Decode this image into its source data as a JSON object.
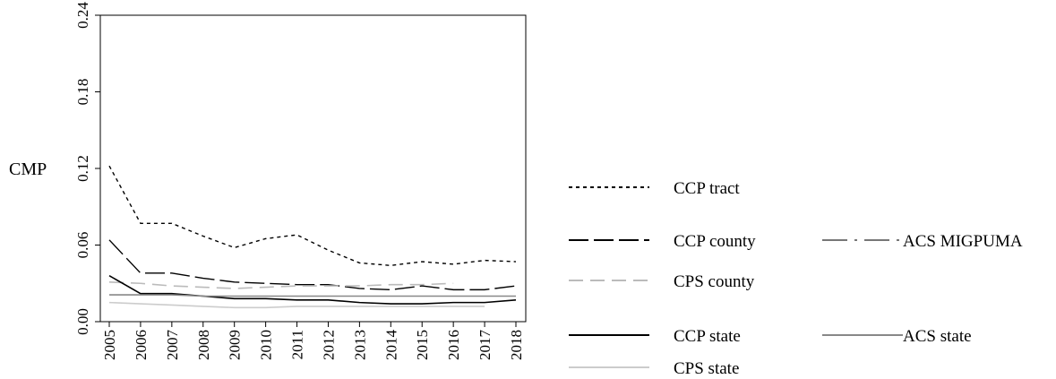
{
  "chart_data": {
    "type": "line",
    "title": "",
    "xlabel": "",
    "ylabel": "CMP",
    "ylim": [
      0,
      0.24
    ],
    "y_ticks": [
      "0.00",
      "0.06",
      "0.12",
      "0.18",
      "0.24"
    ],
    "x": [
      "2005",
      "2006",
      "2007",
      "2008",
      "2009",
      "2010",
      "2011",
      "2012",
      "2013",
      "2014",
      "2015",
      "2016",
      "2017",
      "2018"
    ],
    "grid": false,
    "legend_position": "right",
    "series": [
      {
        "name": "CCP tract",
        "style": "dotted",
        "color": "#000000",
        "values": [
          0.122,
          0.077,
          0.077,
          0.067,
          0.058,
          0.065,
          0.068,
          0.056,
          0.046,
          0.044,
          0.047,
          0.045,
          0.048,
          0.047
        ]
      },
      {
        "name": "CCP county",
        "style": "longdash",
        "color": "#000000",
        "values": [
          0.064,
          0.038,
          0.038,
          0.034,
          0.031,
          0.03,
          0.029,
          0.029,
          0.026,
          0.025,
          0.028,
          0.025,
          0.025,
          0.028
        ]
      },
      {
        "name": "ACS MIGPUMA",
        "style": "dashdot",
        "color": "#777777",
        "values": [
          null,
          null,
          null,
          null,
          null,
          null,
          null,
          null,
          null,
          null,
          null,
          null,
          null,
          null
        ]
      },
      {
        "name": "CPS county",
        "style": "dashed",
        "color": "#bbbbbb",
        "values": [
          0.031,
          0.03,
          0.028,
          0.027,
          0.026,
          0.027,
          0.028,
          0.028,
          0.028,
          0.029,
          0.029,
          0.03,
          null,
          null
        ]
      },
      {
        "name": "CCP state",
        "style": "solid",
        "color": "#000000",
        "values": [
          0.036,
          0.022,
          0.022,
          0.02,
          0.018,
          0.018,
          0.017,
          0.017,
          0.015,
          0.014,
          0.014,
          0.015,
          0.015,
          0.017
        ]
      },
      {
        "name": "ACS state",
        "style": "solid",
        "color": "#888888",
        "values": [
          0.021,
          0.021,
          0.021,
          0.02,
          0.02,
          0.02,
          0.02,
          0.02,
          0.02,
          0.02,
          0.02,
          0.02,
          0.02,
          0.02
        ]
      },
      {
        "name": "CPS state",
        "style": "solid",
        "color": "#cccccc",
        "values": [
          0.015,
          0.014,
          0.013,
          0.012,
          0.011,
          0.011,
          0.012,
          0.012,
          0.012,
          0.012,
          0.012,
          0.012,
          0.012,
          null
        ]
      }
    ]
  }
}
